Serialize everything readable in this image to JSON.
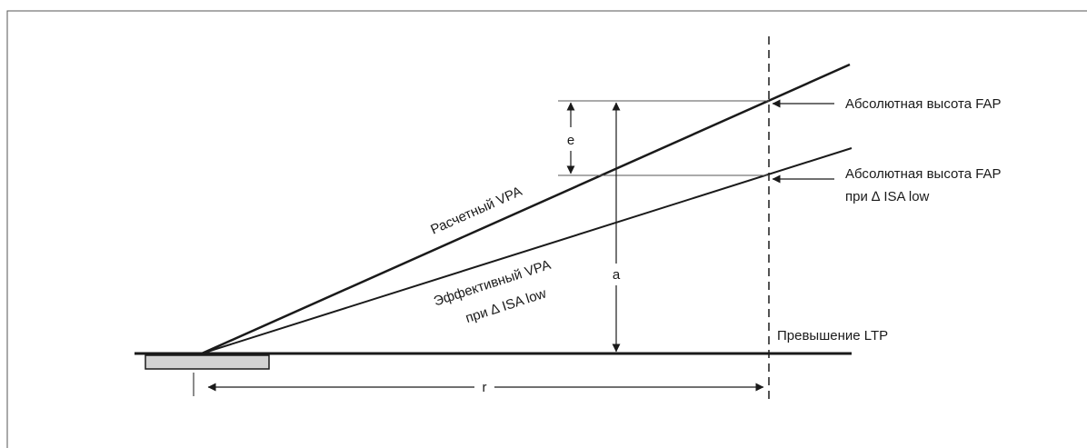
{
  "labels": {
    "calculated_vpa": "Расчетный VPA",
    "effective_vpa_line1": "Эффективный VPA",
    "effective_vpa_line2": "при ∆ ISA low",
    "fap_altitude": "Абсолютная высота FAP",
    "fap_altitude_low_line1": "Абсолютная высота FAP",
    "fap_altitude_low_line2": "при ∆ ISA low",
    "ltp_elevation": "Превышение LTP",
    "dim_e": "e",
    "dim_a": "a",
    "dim_r": "r"
  },
  "colors": {
    "line": "#1a1a1a",
    "frame": "#555555",
    "runway_fill": "#d3d3d3"
  }
}
